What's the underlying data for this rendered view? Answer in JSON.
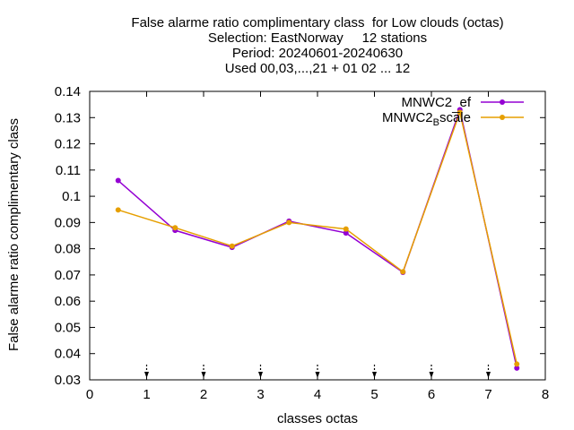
{
  "chart_data": {
    "type": "line",
    "title_lines": [
      "False alarme ratio complimentary class  for Low clouds (octas)",
      "Selection: EastNorway     12 stations",
      "Period: 20240601-20240630",
      "Used 00,03,...,21 + 01 02 ... 12"
    ],
    "xlabel": "classes octas",
    "ylabel": "False alarme ratio complimentary class",
    "xlim": [
      0,
      8
    ],
    "ylim": [
      0.03,
      0.14
    ],
    "xticks": [
      0,
      1,
      2,
      3,
      4,
      5,
      6,
      7,
      8
    ],
    "yticks": [
      0.03,
      0.04,
      0.05,
      0.06,
      0.07,
      0.08,
      0.09,
      0.1,
      0.11,
      0.12,
      0.13,
      0.14
    ],
    "xtick_labels": [
      "0",
      "1",
      "2",
      "3",
      "4",
      "5",
      "6",
      "7",
      "8"
    ],
    "ytick_labels": [
      "0.03",
      "0.04",
      "0.05",
      "0.06",
      "0.07",
      "0.08",
      "0.09",
      "0.1",
      "0.11",
      "0.12",
      "0.13",
      "0.14"
    ],
    "legend_position": "top-right",
    "grid": false,
    "arrow_markers_x": [
      1,
      2,
      3,
      4,
      5,
      6,
      7
    ],
    "series": [
      {
        "name": "MNWC2_ef",
        "legend_main": "MNWC2",
        "legend_sub": "",
        "legend_tail": "ef",
        "color": "#9400d3",
        "x": [
          0.5,
          1.5,
          2.5,
          3.5,
          4.5,
          5.5,
          6.5,
          7.5
        ],
        "values": [
          0.106,
          0.087,
          0.0805,
          0.0905,
          0.086,
          0.071,
          0.133,
          0.0345
        ]
      },
      {
        "name": "MNWC2_Bscale",
        "legend_main": "MNWC2",
        "legend_sub": "B",
        "legend_tail": "scale",
        "color": "#e69f00",
        "x": [
          0.5,
          1.5,
          2.5,
          3.5,
          4.5,
          5.5,
          6.5,
          7.5
        ],
        "values": [
          0.0948,
          0.088,
          0.081,
          0.09,
          0.0875,
          0.0712,
          0.132,
          0.036
        ]
      }
    ]
  }
}
